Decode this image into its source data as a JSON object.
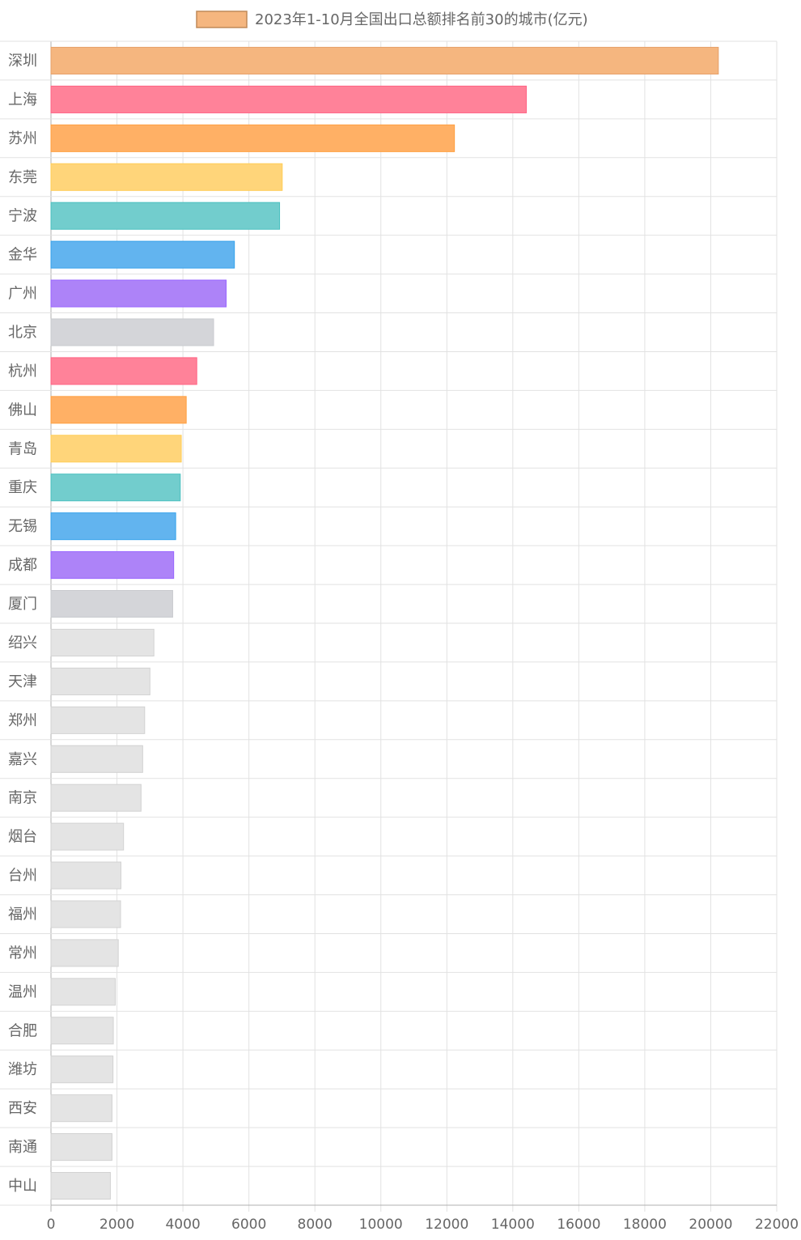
{
  "chart_data": {
    "type": "bar",
    "orientation": "horizontal",
    "legend": {
      "label": "2023年1-10月全国出口总额排名前30的城市(亿元)",
      "position": "top-center",
      "swatch_fill": "#f5b67f",
      "swatch_stroke": "#c08a58"
    },
    "xlim": [
      0,
      22000
    ],
    "x_ticks": [
      0,
      2000,
      4000,
      6000,
      8000,
      10000,
      12000,
      14000,
      16000,
      18000,
      20000,
      22000
    ],
    "grid": true,
    "categories": [
      "深圳",
      "上海",
      "苏州",
      "东莞",
      "宁波",
      "金华",
      "广州",
      "北京",
      "杭州",
      "佛山",
      "青岛",
      "重庆",
      "无锡",
      "成都",
      "厦门",
      "绍兴",
      "天津",
      "郑州",
      "嘉兴",
      "南京",
      "烟台",
      "台州",
      "福州",
      "常州",
      "温州",
      "合肥",
      "潍坊",
      "西安",
      "南通",
      "中山"
    ],
    "values": [
      20230,
      14410,
      12230,
      7010,
      6930,
      5560,
      5310,
      4930,
      4420,
      4100,
      3950,
      3920,
      3780,
      3720,
      3690,
      3120,
      3000,
      2840,
      2780,
      2730,
      2200,
      2120,
      2110,
      2040,
      1950,
      1890,
      1880,
      1850,
      1850,
      1800
    ],
    "colors": [
      "#f5b67f",
      "#ff8299",
      "#ffb065",
      "#ffd57a",
      "#72cdcd",
      "#62b4ef",
      "#ad83f8",
      "#d4d5d9",
      "#ff8299",
      "#ffb065",
      "#ffd57a",
      "#72cdcd",
      "#62b4ef",
      "#ad83f8",
      "#d4d5d9",
      "#e4e4e4",
      "#e4e4e4",
      "#e4e4e4",
      "#e4e4e4",
      "#e4e4e4",
      "#e4e4e4",
      "#e4e4e4",
      "#e4e4e4",
      "#e4e4e4",
      "#e4e4e4",
      "#e4e4e4",
      "#e4e4e4",
      "#e4e4e4",
      "#e4e4e4",
      "#e4e4e4"
    ],
    "border_colors": [
      "#e6a06a",
      "#ff6384",
      "#ff9f40",
      "#ffcd56",
      "#4bc0c0",
      "#36a2eb",
      "#9966ff",
      "#c9cbcf",
      "#ff6384",
      "#ff9f40",
      "#ffcd56",
      "#4bc0c0",
      "#36a2eb",
      "#9966ff",
      "#c9cbcf",
      "#d2d2d2",
      "#d2d2d2",
      "#d2d2d2",
      "#d2d2d2",
      "#d2d2d2",
      "#d2d2d2",
      "#d2d2d2",
      "#d2d2d2",
      "#d2d2d2",
      "#d2d2d2",
      "#d2d2d2",
      "#d2d2d2",
      "#d2d2d2",
      "#d2d2d2",
      "#d2d2d2"
    ]
  }
}
